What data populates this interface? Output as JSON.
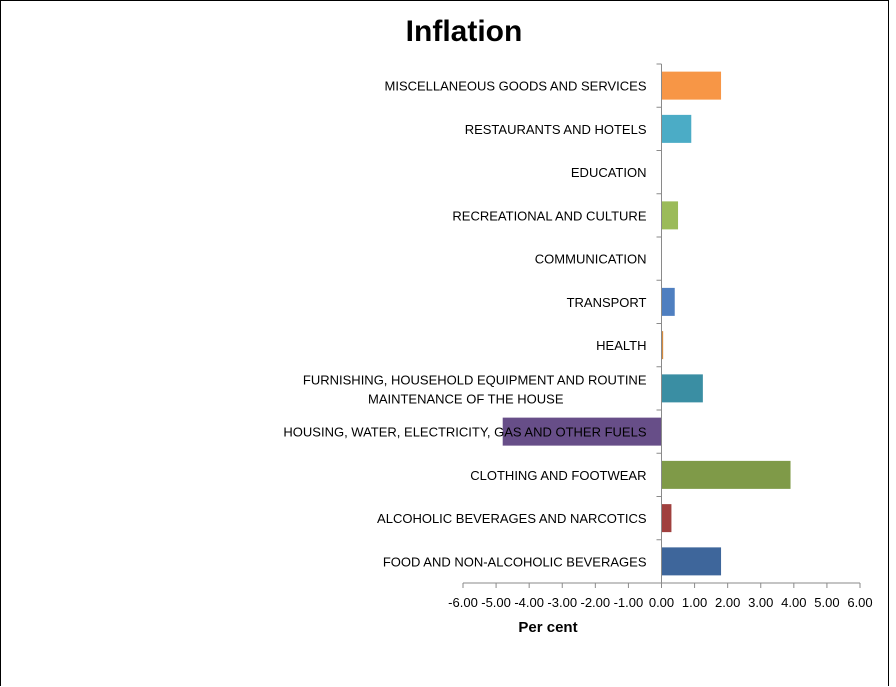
{
  "chart_data": {
    "type": "bar",
    "orientation": "horizontal",
    "title": "Inflation",
    "xlabel": "Per cent",
    "ylabel": "",
    "xlim": [
      -6,
      6
    ],
    "tick_labels": [
      "-6.00",
      "-5.00",
      "-4.00",
      "-3.00",
      "-2.00",
      "-1.00",
      "0.00",
      "1.00",
      "2.00",
      "3.00",
      "4.00",
      "5.00",
      "6.00"
    ],
    "grid": false,
    "legend": "none",
    "categories": [
      "FOOD AND NON-ALCOHOLIC BEVERAGES",
      "ALCOHOLIC BEVERAGES AND NARCOTICS",
      "CLOTHING AND FOOTWEAR",
      "HOUSING, WATER, ELECTRICITY, GAS AND OTHER FUELS",
      [
        "FURNISHING, HOUSEHOLD EQUIPMENT AND ROUTINE",
        "MAINTENANCE OF THE HOUSE"
      ],
      "HEALTH",
      "TRANSPORT",
      "COMMUNICATION",
      "RECREATIONAL AND CULTURE",
      "EDUCATION",
      "RESTAURANTS AND HOTELS",
      "MISCELLANEOUS GOODS AND SERVICES"
    ],
    "values": [
      1.8,
      0.3,
      3.9,
      -4.8,
      1.25,
      0.05,
      0.4,
      0.0,
      0.5,
      0.0,
      0.9,
      1.8
    ],
    "colors": [
      "#3E669B",
      "#A0403E",
      "#7F9A48",
      "#674E88",
      "#3A8EA3",
      "#D48A3E",
      "#4F7FC0",
      "#C0504D",
      "#9BBB59",
      "#8064A2",
      "#4BACC6",
      "#F79646"
    ]
  }
}
